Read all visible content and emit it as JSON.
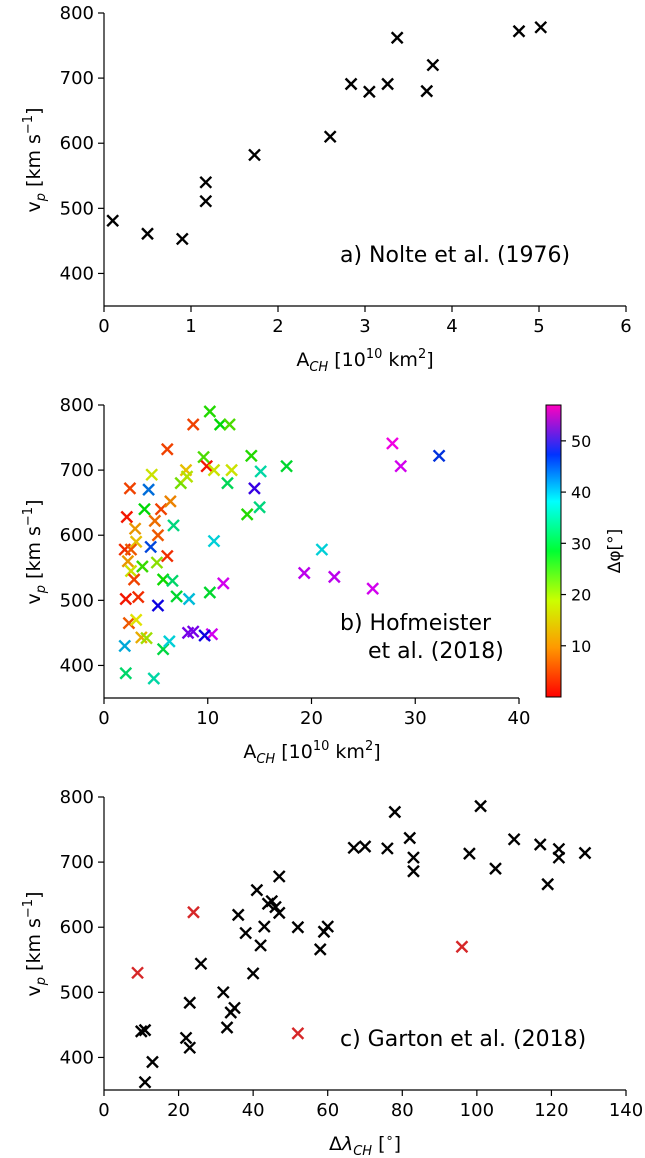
{
  "chart_data": [
    {
      "type": "scatter",
      "panel": "a",
      "annotation": "a) Nolte et al. (1976)",
      "xlabel": "A_CH [10^10 km^2]",
      "ylabel": "v_p [km s^-1]",
      "xlim": [
        0,
        6
      ],
      "ylim": [
        350,
        800
      ],
      "xticks": [
        0,
        1,
        2,
        3,
        4,
        5,
        6
      ],
      "yticks": [
        400,
        500,
        600,
        700,
        800
      ],
      "marker": "x",
      "marker_color": "#000000",
      "points": [
        [
          0.1,
          481
        ],
        [
          0.5,
          461
        ],
        [
          0.9,
          453
        ],
        [
          1.17,
          511
        ],
        [
          1.17,
          540
        ],
        [
          1.73,
          582
        ],
        [
          2.6,
          610
        ],
        [
          2.84,
          691
        ],
        [
          3.05,
          679
        ],
        [
          3.26,
          691
        ],
        [
          3.37,
          762
        ],
        [
          3.71,
          680
        ],
        [
          3.78,
          720
        ],
        [
          4.77,
          772
        ],
        [
          5.02,
          778
        ]
      ]
    },
    {
      "type": "scatter",
      "panel": "b",
      "annotation_lines": [
        "b) Hofmeister",
        "et al. (2018)"
      ],
      "xlabel": "A_CH [10^10 km^2]",
      "ylabel": "v_p [km s^-1]",
      "xlim": [
        0,
        40
      ],
      "ylim": [
        350,
        800
      ],
      "xticks": [
        0,
        10,
        20,
        30,
        40
      ],
      "yticks": [
        400,
        500,
        600,
        700,
        800
      ],
      "marker": "x",
      "colorbar": {
        "label": "Δφ[°]",
        "range": [
          0,
          57
        ],
        "ticks": [
          10,
          20,
          30,
          40,
          50
        ],
        "colormap": "gist_rainbow_r"
      },
      "points": [
        [
          2.0,
          578,
          2
        ],
        [
          2.2,
          628,
          1
        ],
        [
          2.5,
          672,
          3
        ],
        [
          2.3,
          560,
          7
        ],
        [
          2.1,
          502,
          1
        ],
        [
          2.4,
          465,
          4
        ],
        [
          2.0,
          430,
          35
        ],
        [
          2.1,
          388,
          27
        ],
        [
          2.6,
          545,
          12
        ],
        [
          2.9,
          532,
          3
        ],
        [
          3.1,
          590,
          9
        ],
        [
          3.3,
          505,
          2
        ],
        [
          3.1,
          470,
          11
        ],
        [
          3.6,
          443,
          8
        ],
        [
          4.1,
          442,
          14
        ],
        [
          3.9,
          640,
          22
        ],
        [
          4.3,
          670,
          38
        ],
        [
          4.6,
          693,
          12
        ],
        [
          4.9,
          622,
          5
        ],
        [
          5.2,
          600,
          4
        ],
        [
          5.5,
          640,
          3
        ],
        [
          5.1,
          558,
          15
        ],
        [
          4.5,
          582,
          40
        ],
        [
          5.7,
          532,
          21
        ],
        [
          6.1,
          568,
          2
        ],
        [
          6.4,
          652,
          6
        ],
        [
          6.7,
          615,
          28
        ],
        [
          7.0,
          506,
          24
        ],
        [
          7.4,
          680,
          16
        ],
        [
          7.9,
          700,
          9
        ],
        [
          8.2,
          502,
          34
        ],
        [
          8.6,
          770,
          3
        ],
        [
          9.6,
          720,
          18
        ],
        [
          9.9,
          706,
          1
        ],
        [
          10.2,
          790,
          20
        ],
        [
          10.6,
          700,
          12
        ],
        [
          11.2,
          770,
          22
        ],
        [
          11.9,
          680,
          26
        ],
        [
          12.3,
          700,
          12
        ],
        [
          12.1,
          770,
          18
        ],
        [
          13.8,
          632,
          20
        ],
        [
          14.5,
          672,
          46
        ],
        [
          14.2,
          722,
          20
        ],
        [
          15.0,
          643,
          28
        ],
        [
          15.1,
          698,
          30
        ],
        [
          17.6,
          706,
          24
        ],
        [
          10.6,
          591,
          33
        ],
        [
          10.2,
          512,
          24
        ],
        [
          11.5,
          526,
          53
        ],
        [
          10.4,
          448,
          53
        ],
        [
          9.7,
          446,
          44
        ],
        [
          8.6,
          452,
          49
        ],
        [
          8.1,
          450,
          49
        ],
        [
          5.2,
          492,
          44
        ],
        [
          4.8,
          380,
          30
        ],
        [
          5.7,
          425,
          25
        ],
        [
          6.3,
          437,
          33
        ],
        [
          6.1,
          732,
          3
        ],
        [
          8.0,
          690,
          13
        ],
        [
          6.6,
          530,
          27
        ],
        [
          3.0,
          610,
          7
        ],
        [
          3.7,
          552,
          19
        ],
        [
          2.6,
          578,
          4
        ],
        [
          19.3,
          542,
          52
        ],
        [
          21.0,
          578,
          33
        ],
        [
          22.2,
          536,
          52
        ],
        [
          25.9,
          518,
          53
        ],
        [
          27.8,
          741,
          55
        ],
        [
          28.6,
          706,
          53
        ],
        [
          32.3,
          722,
          41
        ]
      ]
    },
    {
      "type": "scatter",
      "panel": "c",
      "annotation": "c) Garton et al. (2018)",
      "xlabel": "Δλ_CH [°]",
      "ylabel": "v_p [km s^-1]",
      "xlim": [
        0,
        140
      ],
      "ylim": [
        350,
        800
      ],
      "xticks": [
        0,
        20,
        40,
        60,
        80,
        100,
        120,
        140
      ],
      "yticks": [
        400,
        500,
        600,
        700,
        800
      ],
      "marker": "x",
      "series": [
        {
          "color": "#000000",
          "points": [
            [
              10,
              440
            ],
            [
              11,
              442
            ],
            [
              13,
              393
            ],
            [
              11,
              362
            ],
            [
              22,
              430
            ],
            [
              23,
              415
            ],
            [
              23,
              484
            ],
            [
              26,
              544
            ],
            [
              32,
              500
            ],
            [
              33,
              446
            ],
            [
              34,
              469
            ],
            [
              35,
              476
            ],
            [
              36,
              619
            ],
            [
              38,
              591
            ],
            [
              40,
              529
            ],
            [
              41,
              657
            ],
            [
              42,
              572
            ],
            [
              43,
              601
            ],
            [
              44,
              636
            ],
            [
              45,
              640
            ],
            [
              46,
              631
            ],
            [
              47,
              678
            ],
            [
              47,
              622
            ],
            [
              52,
              600
            ],
            [
              58,
              566
            ],
            [
              59,
              593
            ],
            [
              60,
              601
            ],
            [
              67,
              722
            ],
            [
              70,
              724
            ],
            [
              76,
              721
            ],
            [
              78,
              777
            ],
            [
              82,
              737
            ],
            [
              83,
              707
            ],
            [
              83,
              686
            ],
            [
              98,
              713
            ],
            [
              101,
              786
            ],
            [
              105,
              690
            ],
            [
              110,
              735
            ],
            [
              117,
              727
            ],
            [
              119,
              666
            ],
            [
              122,
              720
            ],
            [
              122,
              707
            ],
            [
              129,
              714
            ]
          ]
        },
        {
          "color": "#d62728",
          "points": [
            [
              9,
              530
            ],
            [
              24,
              623
            ],
            [
              52,
              437
            ],
            [
              96,
              570
            ]
          ]
        }
      ]
    }
  ]
}
